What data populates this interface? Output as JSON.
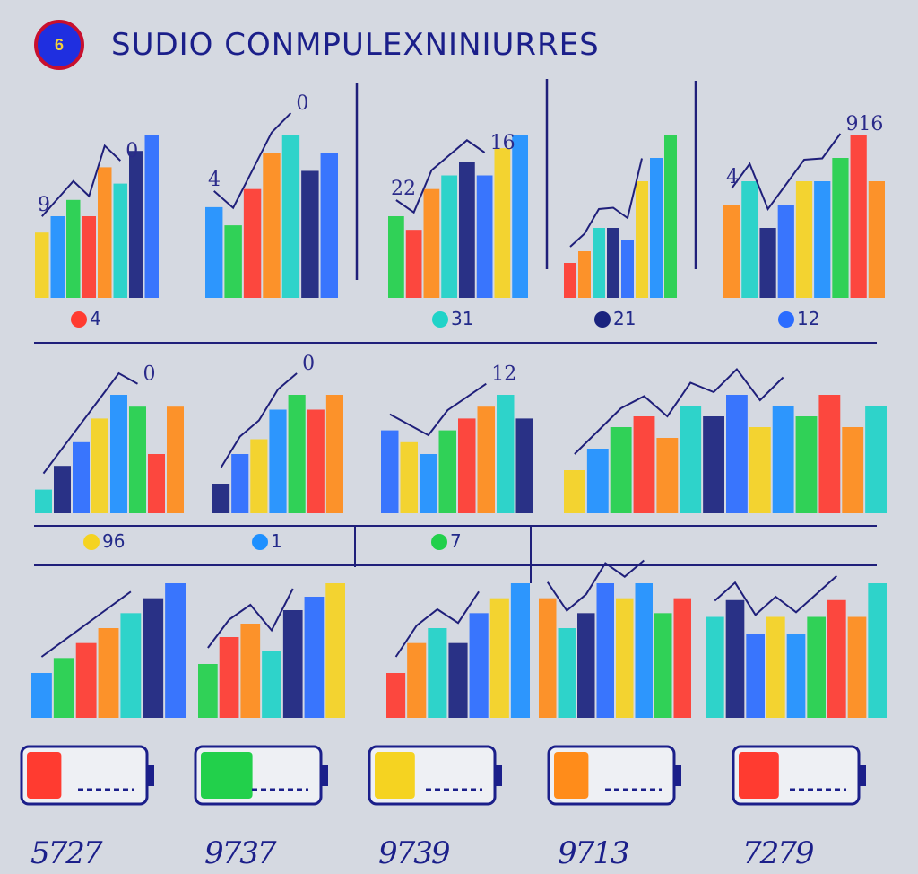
{
  "header": {
    "badge": "6",
    "title": "SUDIO CONMPULEXNINIURRES"
  },
  "colors": {
    "background": "#d5d9e1",
    "ink": "#1f1f7a",
    "palette": [
      "#f5d321",
      "#1e90ff",
      "#22d04b",
      "#ff3b30",
      "#ff8c1a",
      "#20d3c8",
      "#1a237e",
      "#2b6cff"
    ]
  },
  "chart_data": [
    {
      "type": "bar",
      "row": 0,
      "values": [
        4,
        5,
        6,
        5,
        8,
        7,
        9,
        10
      ],
      "line_label": "9",
      "peak_label": "0",
      "caption": "4"
    },
    {
      "type": "bar",
      "row": 0,
      "values": [
        5,
        4,
        6,
        8,
        9,
        7,
        8
      ],
      "line_label": "4",
      "peak_label": "0",
      "caption": ""
    },
    {
      "type": "bar",
      "row": 0,
      "values": [
        6,
        5,
        8,
        9,
        10,
        9,
        11,
        12
      ],
      "line_label": "22",
      "peak_label": "16",
      "caption": "31"
    },
    {
      "type": "bar",
      "row": 0,
      "values": [
        3,
        4,
        6,
        6,
        5,
        10,
        12,
        14
      ],
      "line_label": "",
      "peak_label": "",
      "caption": "21"
    },
    {
      "type": "bar",
      "row": 0,
      "values": [
        4,
        5,
        3,
        4,
        5,
        5,
        6,
        7,
        5
      ],
      "line_label": "4",
      "peak_label": "916",
      "caption": "12"
    },
    {
      "type": "bar",
      "row": 1,
      "values": [
        2,
        4,
        6,
        8,
        10,
        9,
        5,
        9
      ],
      "line_label": "",
      "peak_label": "0",
      "caption": "96"
    },
    {
      "type": "bar",
      "row": 1,
      "values": [
        2,
        4,
        5,
        7,
        8,
        7,
        8
      ],
      "line_label": "",
      "peak_label": "0",
      "caption": "1"
    },
    {
      "type": "bar",
      "row": 1,
      "values": [
        7,
        6,
        5,
        7,
        8,
        9,
        10,
        8
      ],
      "line_label": "",
      "peak_label": "12",
      "caption": "7"
    },
    {
      "type": "bar",
      "row": 1,
      "values": [
        4,
        6,
        8,
        9,
        7,
        10,
        9,
        11,
        8,
        10,
        9,
        11,
        8,
        10
      ],
      "line_label": "",
      "peak_label": "",
      "caption": ""
    },
    {
      "type": "bar",
      "row": 2,
      "values": [
        3,
        4,
        5,
        6,
        7,
        8,
        9
      ],
      "line_label": "",
      "peak_label": "",
      "caption": ""
    },
    {
      "type": "bar",
      "row": 2,
      "values": [
        4,
        6,
        7,
        5,
        8,
        9,
        10
      ],
      "line_label": "",
      "peak_label": "",
      "caption": ""
    },
    {
      "type": "bar",
      "row": 2,
      "values": [
        3,
        5,
        6,
        5,
        7,
        8,
        9
      ],
      "line_label": "",
      "peak_label": "",
      "caption": ""
    },
    {
      "type": "bar",
      "row": 2,
      "values": [
        8,
        6,
        7,
        9,
        8,
        9,
        7,
        8
      ],
      "line_label": "",
      "peak_label": "",
      "caption": ""
    },
    {
      "type": "bar",
      "row": 2,
      "values": [
        6,
        7,
        5,
        6,
        5,
        6,
        7,
        6,
        8
      ],
      "line_label": "",
      "peak_label": "",
      "caption": ""
    }
  ],
  "batteries": [
    {
      "fill": 0.3,
      "color": "#ff3b30",
      "label": "5727"
    },
    {
      "fill": 0.45,
      "color": "#22d04b",
      "label": "9737"
    },
    {
      "fill": 0.35,
      "color": "#f5d321",
      "label": "9739"
    },
    {
      "fill": 0.3,
      "color": "#ff8c1a",
      "label": "9713"
    },
    {
      "fill": 0.35,
      "color": "#ff3b30",
      "label": "7279"
    }
  ]
}
